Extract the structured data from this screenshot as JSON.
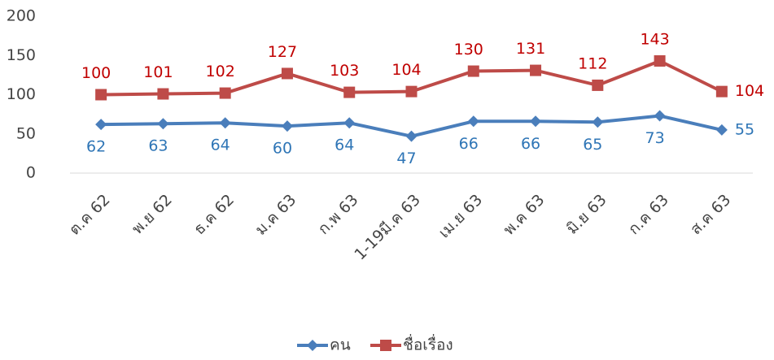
{
  "chart_data": {
    "type": "line",
    "categories": [
      "ต.ค 62",
      "พ.ย 62",
      "ธ.ค 62",
      "ม.ค 63",
      "ก.พ 63",
      "1-19มี.ค 63",
      "เม.ย 63",
      "พ.ค 63",
      "มิ.ย 63",
      "ก.ค 63",
      "ส.ค 63"
    ],
    "series": [
      {
        "name": "คน",
        "color": "#4a7ebb",
        "label_color": "#2e75b6",
        "marker": "diamond",
        "values": [
          62,
          63,
          64,
          60,
          64,
          47,
          66,
          66,
          65,
          73,
          55
        ]
      },
      {
        "name": "ชื่อเรื่อง",
        "color": "#be4b48",
        "label_color": "#c00000",
        "marker": "square",
        "values": [
          100,
          101,
          102,
          127,
          103,
          104,
          130,
          131,
          112,
          143,
          104
        ]
      }
    ],
    "ylim": [
      0,
      200
    ],
    "yticks": [
      0,
      50,
      100,
      150,
      200
    ],
    "grid": false,
    "legend": "bottom"
  }
}
